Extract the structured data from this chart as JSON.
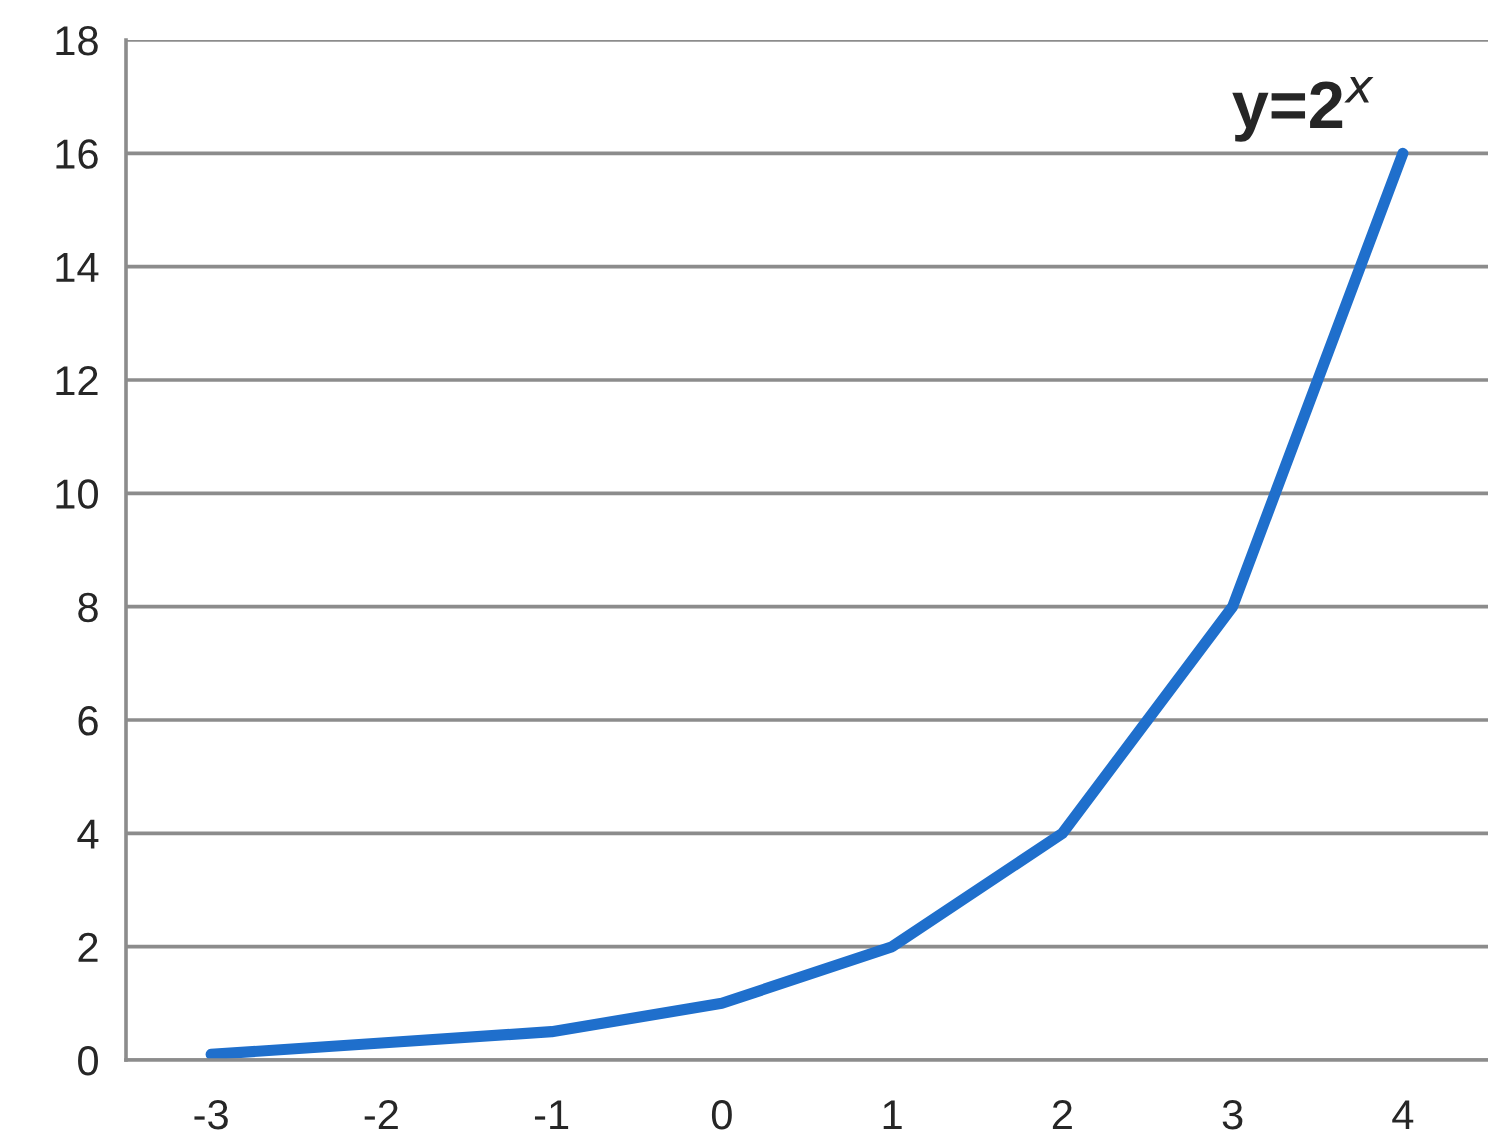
{
  "chart_data": {
    "type": "line",
    "categories": [
      "-3",
      "-2",
      "-1",
      "0",
      "1",
      "2",
      "3",
      "4"
    ],
    "series": [
      {
        "color": "#1f6fcc",
        "values": [
          0.1,
          0.3,
          0.5,
          1,
          2,
          4,
          8,
          16
        ]
      }
    ],
    "ylim": [
      0,
      18
    ],
    "yticks": [
      0,
      2,
      4,
      6,
      8,
      10,
      12,
      14,
      16,
      18
    ],
    "grid": "y",
    "legend": false,
    "marker": "none",
    "line_style": "solid",
    "annotations": [
      {
        "text": "y=2$^{x}$",
        "x": "4",
        "y": 16
      }
    ]
  }
}
